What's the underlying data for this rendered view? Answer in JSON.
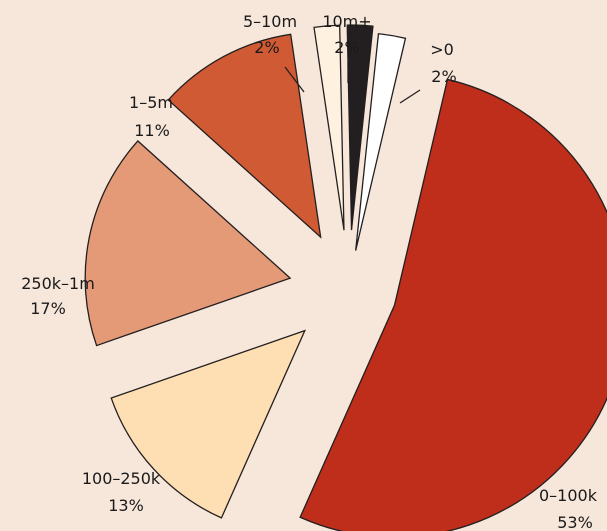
{
  "chart_data": {
    "type": "pie",
    "title": "",
    "slices": [
      {
        "label": ">0",
        "pct_label": "2%",
        "value": 2,
        "color": "#FFFFFF"
      },
      {
        "label": "0–100k",
        "pct_label": "53%",
        "value": 53,
        "color": "#BF2E1B"
      },
      {
        "label": "100–250k",
        "pct_label": "13%",
        "value": 13,
        "color": "#FDDFB3"
      },
      {
        "label": "250k–1m",
        "pct_label": "17%",
        "value": 17,
        "color": "#E49A76"
      },
      {
        "label": "1–5m",
        "pct_label": "11%",
        "value": 11,
        "color": "#D05A33"
      },
      {
        "label": "5–10m",
        "pct_label": "2%",
        "value": 2,
        "color": "#FEF1DF"
      },
      {
        "label": "10m+",
        "pct_label": "2%",
        "value": 2,
        "color": "#231F20"
      }
    ],
    "exploded": true,
    "legend": "none",
    "background": "#F7E6DA"
  }
}
